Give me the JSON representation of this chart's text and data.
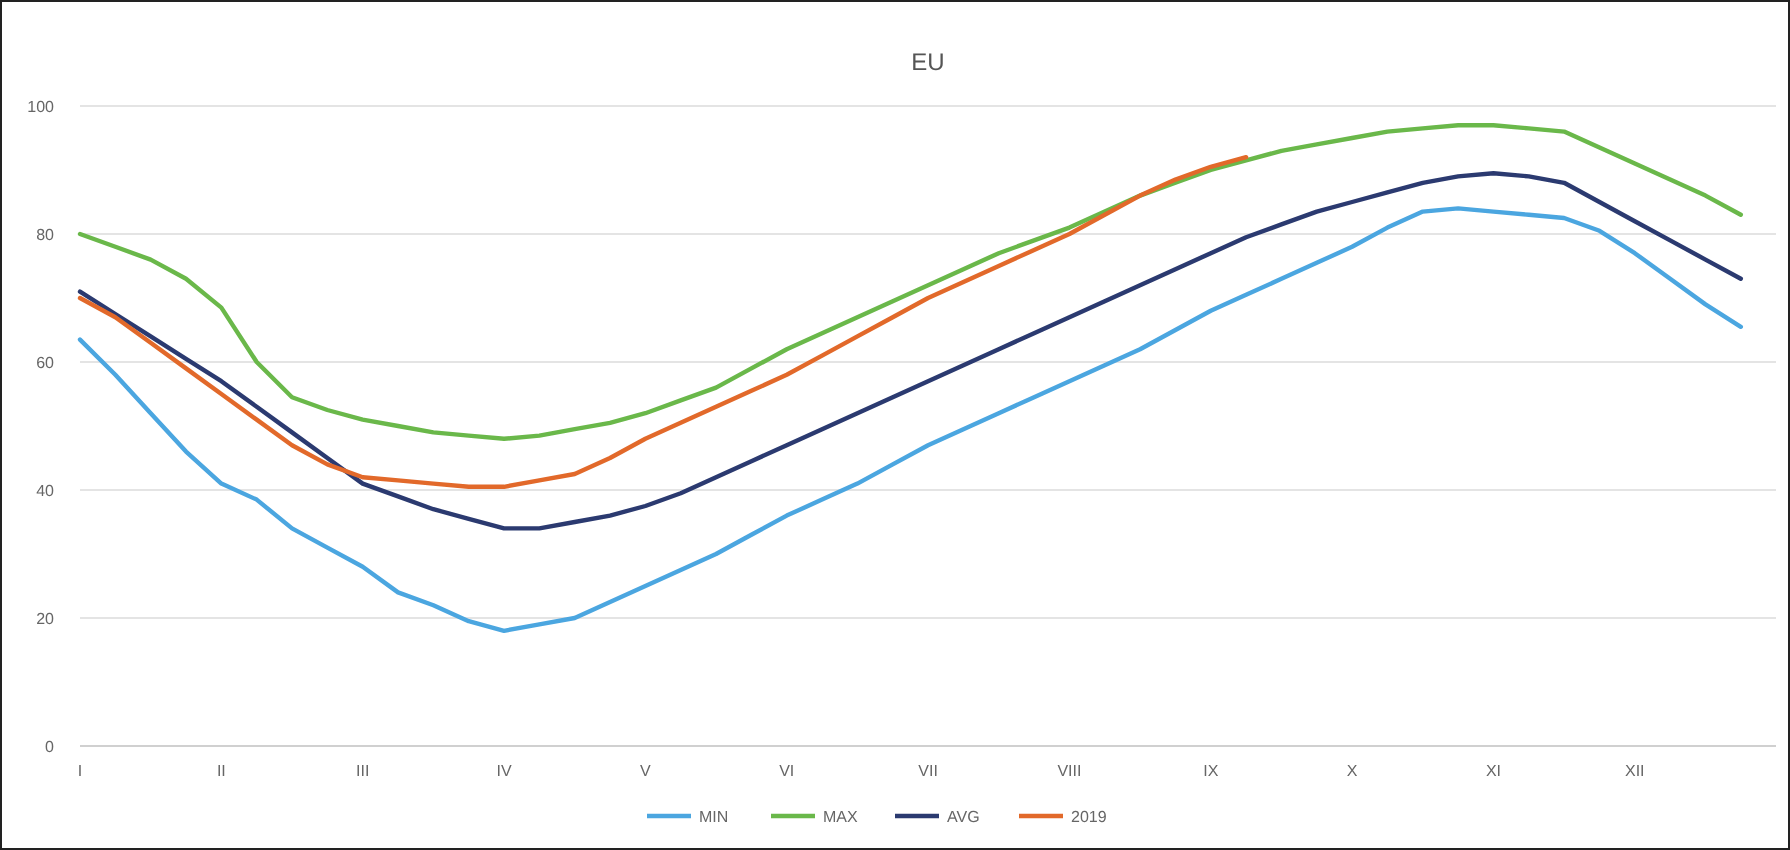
{
  "chart_data": {
    "type": "line",
    "title": "EU",
    "categories": [
      "I",
      null,
      null,
      null,
      "II",
      null,
      null,
      null,
      "III",
      null,
      null,
      null,
      "IV",
      null,
      null,
      null,
      "V",
      null,
      null,
      null,
      "VI",
      null,
      null,
      null,
      "VII",
      null,
      null,
      null,
      "VIII",
      null,
      null,
      null,
      "IX",
      null,
      null,
      null,
      "X",
      null,
      null,
      null,
      "XI",
      null,
      null,
      null,
      "XII",
      null,
      null,
      null
    ],
    "ylim": [
      0,
      100
    ],
    "yticks": [
      0,
      20,
      40,
      60,
      80,
      100
    ],
    "grid": "y",
    "legend": "bottom",
    "marker": "none",
    "line_style": "solid",
    "series": [
      {
        "name": "MIN",
        "color": "#4ba6e0",
        "values": [
          63.5,
          58,
          52,
          46,
          41,
          38.5,
          34,
          31,
          28,
          24,
          22,
          19.5,
          18,
          19,
          20,
          22.5,
          25,
          27.5,
          30,
          33,
          36,
          38.5,
          41,
          44,
          47,
          49.5,
          52,
          54.5,
          57,
          59.5,
          62,
          65,
          68,
          70.5,
          73,
          75.5,
          78,
          81,
          83.5,
          84,
          83.5,
          83,
          82.5,
          80.5,
          77,
          73,
          69,
          65.5
        ]
      },
      {
        "name": "MAX",
        "color": "#6ab84a",
        "values": [
          80,
          78,
          76,
          73,
          68.5,
          60,
          54.5,
          52.5,
          51,
          50,
          49,
          48.5,
          48,
          48.5,
          49.5,
          50.5,
          52,
          54,
          56,
          59,
          62,
          64.5,
          67,
          69.5,
          72,
          74.5,
          77,
          79,
          81,
          83.5,
          86,
          88,
          90,
          91.5,
          93,
          94,
          95,
          96,
          96.5,
          97,
          97,
          96.5,
          96,
          93.5,
          91,
          88.5,
          86,
          83
        ]
      },
      {
        "name": "AVG",
        "color": "#2b3a70",
        "values": [
          71,
          67.5,
          64,
          60.5,
          57,
          53,
          49,
          45,
          41,
          39,
          37,
          35.5,
          34,
          34,
          35,
          36,
          37.5,
          39.5,
          42,
          44.5,
          47,
          49.5,
          52,
          54.5,
          57,
          59.5,
          62,
          64.5,
          67,
          69.5,
          72,
          74.5,
          77,
          79.5,
          81.5,
          83.5,
          85,
          86.5,
          88,
          89,
          89.5,
          89,
          88,
          85,
          82,
          79,
          76,
          73
        ]
      },
      {
        "name": "2019",
        "color": "#e2692a",
        "values": [
          70,
          67,
          63,
          59,
          55,
          51,
          47,
          44,
          42,
          41.5,
          41,
          40.5,
          40.5,
          41.5,
          42.5,
          45,
          48,
          50.5,
          53,
          55.5,
          58,
          61,
          64,
          67,
          70,
          72.5,
          75,
          77.5,
          80,
          83,
          86,
          88.5,
          90.5,
          92,
          null,
          null,
          null,
          null,
          null,
          null,
          null,
          null,
          null,
          null,
          null,
          null,
          null,
          null
        ]
      }
    ]
  }
}
